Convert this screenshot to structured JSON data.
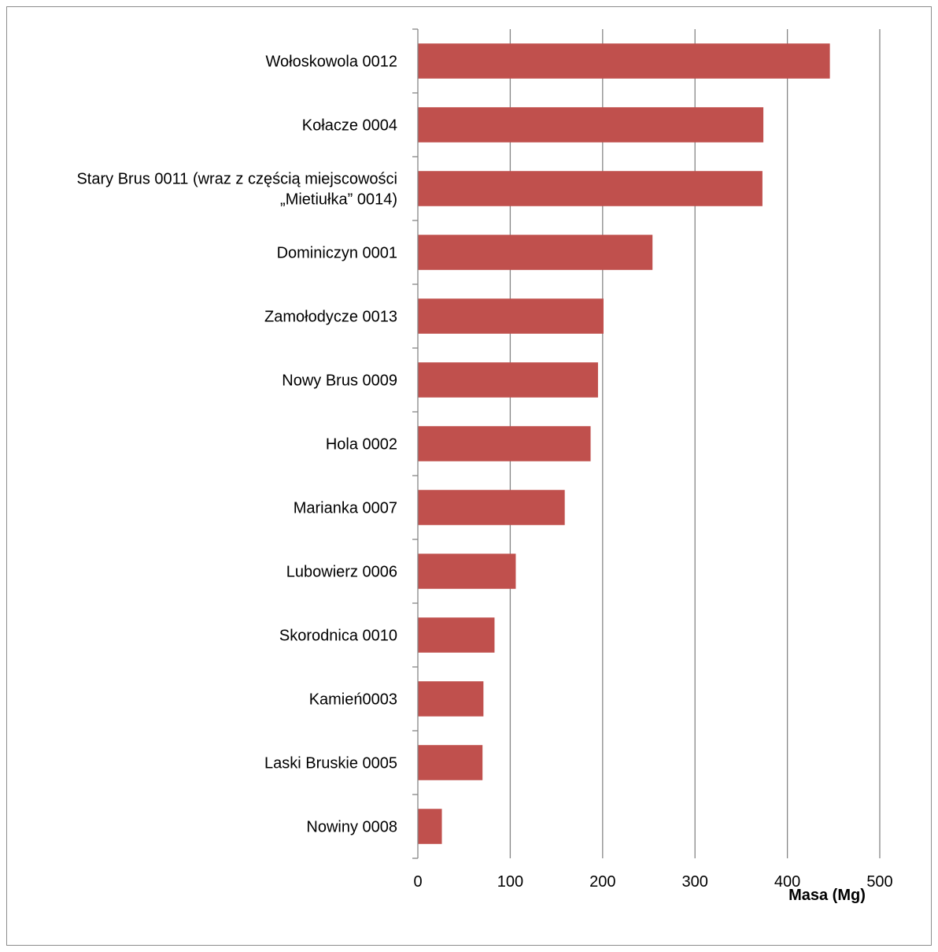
{
  "chart_data": {
    "type": "bar",
    "orientation": "horizontal",
    "categories": [
      "Wołoskowola 0012",
      "Kołacze 0004",
      [
        "Stary Brus 0011 (wraz z częścią miejscowości",
        "„Mietiułka” 0014)"
      ],
      "Dominiczyn 0001",
      "Zamołodycze 0013",
      "Nowy Brus 0009",
      "Hola 0002",
      "Marianka 0007",
      "Lubowierz 0006",
      "Skorodnica 0010",
      "Kamień0003",
      "Laski Bruskie 0005",
      "Nowiny 0008"
    ],
    "values": [
      446,
      374,
      373,
      254,
      201,
      195,
      187,
      159,
      106,
      83,
      71,
      70,
      26
    ],
    "xlabel": "Masa (Mg)",
    "ylabel": "",
    "xlim": [
      0,
      500
    ],
    "xticks": [
      "0",
      "100",
      "200",
      "300",
      "400",
      "500"
    ],
    "grid": "vertical",
    "legend": "none",
    "bar_color": "#c0504d",
    "grid_color": "#868686"
  }
}
